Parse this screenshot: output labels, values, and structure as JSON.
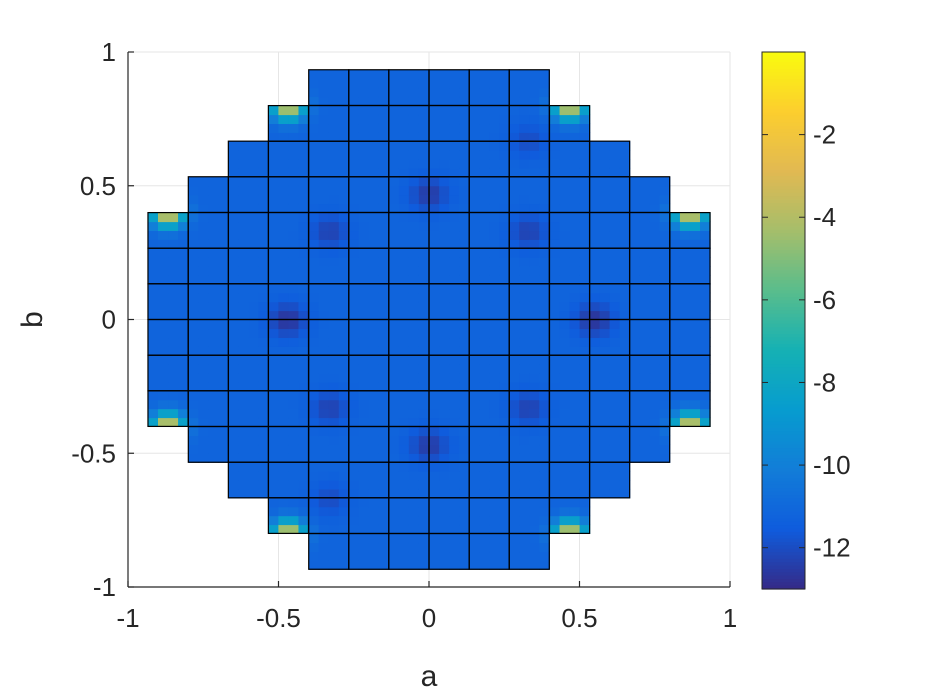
{
  "chart_data": {
    "type": "heatmap",
    "xlabel": "a",
    "ylabel": "b",
    "xlim": [
      -1,
      1
    ],
    "ylim": [
      -1,
      1
    ],
    "grid": true,
    "x_ticks": [
      -1,
      -0.5,
      0,
      0.5,
      1
    ],
    "x_tick_labels": [
      "-1",
      "-0.5",
      "0",
      "0.5",
      "1"
    ],
    "y_ticks": [
      -1,
      -0.5,
      0,
      0.5,
      1
    ],
    "y_tick_labels": [
      "-1",
      "-0.5",
      "0",
      "0.5",
      "1"
    ],
    "domain": {
      "shape": "disk",
      "center": [
        0,
        0
      ],
      "radius": 0.93,
      "mesh_columns": [
        -0.867,
        -0.733,
        -0.6,
        -0.467,
        -0.333,
        -0.2,
        -0.067,
        0.067,
        0.2,
        0.333,
        0.467,
        0.6,
        0.733,
        0.867
      ],
      "mesh_spacing": 0.1333
    },
    "colorbar": {
      "colormap": "parula",
      "location": "right",
      "range": [
        -13,
        0
      ],
      "ticks": [
        -2,
        -4,
        -6,
        -8,
        -10,
        -12
      ],
      "tick_labels": [
        "-2",
        "-4",
        "-6",
        "-8",
        "-10",
        "-12"
      ]
    },
    "background_value": -11.2,
    "features": {
      "minima": [
        {
          "a": 0.0,
          "b": 0.47,
          "value": -12.5
        },
        {
          "a": 0.0,
          "b": -0.47,
          "value": -12.5
        },
        {
          "a": -0.47,
          "b": 0.0,
          "value": -12.7
        },
        {
          "a": 0.55,
          "b": 0.0,
          "value": -12.7
        },
        {
          "a": -0.33,
          "b": 0.33,
          "value": -12.3
        },
        {
          "a": 0.33,
          "b": 0.33,
          "value": -12.3
        },
        {
          "a": -0.33,
          "b": -0.33,
          "value": -12.3
        },
        {
          "a": 0.33,
          "b": -0.33,
          "value": -12.3
        },
        {
          "a": 0.33,
          "b": 0.67,
          "value": -12.0
        },
        {
          "a": -0.33,
          "b": -0.67,
          "value": -12.0
        }
      ],
      "corner_maxima": [
        {
          "a": -0.867,
          "b": 0.4,
          "value": -2.5
        },
        {
          "a": 0.867,
          "b": 0.4,
          "value": -2.5
        },
        {
          "a": -0.867,
          "b": -0.4,
          "value": -2.5
        },
        {
          "a": 0.867,
          "b": -0.4,
          "value": -2.5
        },
        {
          "a": -0.467,
          "b": 0.8,
          "value": -2.8
        },
        {
          "a": 0.467,
          "b": 0.8,
          "value": -2.8
        },
        {
          "a": -0.467,
          "b": -0.8,
          "value": -2.8
        },
        {
          "a": 0.467,
          "b": -0.8,
          "value": -2.8
        }
      ]
    }
  }
}
